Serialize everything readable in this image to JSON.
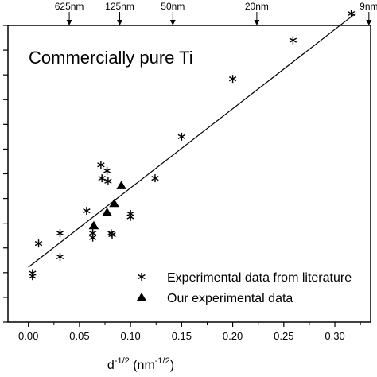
{
  "chart_data": {
    "type": "scatter",
    "title": "",
    "annotation": "Commercially pure Ti",
    "xlabel": "d",
    "xlabel_sup": "-1/2",
    "xlabel_unit_open": " (nm",
    "xlabel_unit_sup": "-1/2",
    "xlabel_unit_close": ")",
    "ylabel": "",
    "xlim": [
      -0.02,
      0.335
    ],
    "ylim": [
      0,
      1
    ],
    "x_ticks": [
      0.0,
      0.05,
      0.1,
      0.15,
      0.2,
      0.25,
      0.3
    ],
    "x_tick_labels": [
      "0.00",
      "0.05",
      "0.10",
      "0.15",
      "0.20",
      "0.25",
      "0.30"
    ],
    "y_minor_count": 12,
    "grid": false,
    "legend_position": "bottom-right",
    "top_axis": [
      {
        "label": "625nm",
        "x": 0.04
      },
      {
        "label": "125nm",
        "x": 0.0894
      },
      {
        "label": "50nm",
        "x": 0.1414
      },
      {
        "label": "20nm",
        "x": 0.2236
      },
      {
        "label": "9nm",
        "x": 0.3333
      }
    ],
    "series": [
      {
        "name": "Experimental data from literature",
        "marker": "asterisk",
        "points": [
          [
            0.004,
            0.155
          ],
          [
            0.004,
            0.165
          ],
          [
            0.01,
            0.265
          ],
          [
            0.031,
            0.22
          ],
          [
            0.031,
            0.3
          ],
          [
            0.057,
            0.375
          ],
          [
            0.063,
            0.285
          ],
          [
            0.063,
            0.3
          ],
          [
            0.071,
            0.53
          ],
          [
            0.072,
            0.485
          ],
          [
            0.077,
            0.51
          ],
          [
            0.078,
            0.475
          ],
          [
            0.081,
            0.3
          ],
          [
            0.082,
            0.295
          ],
          [
            0.1,
            0.365
          ],
          [
            0.1,
            0.355
          ],
          [
            0.124,
            0.485
          ],
          [
            0.15,
            0.625
          ],
          [
            0.2,
            0.82
          ],
          [
            0.259,
            0.95
          ],
          [
            0.316,
            1.04
          ]
        ]
      },
      {
        "name": "Our experimental data",
        "marker": "triangle",
        "points": [
          [
            0.064,
            0.325
          ],
          [
            0.077,
            0.37
          ],
          [
            0.084,
            0.4
          ],
          [
            0.091,
            0.46
          ]
        ]
      }
    ],
    "fit_line": {
      "x": [
        0.0,
        0.32
      ],
      "y": [
        0.185,
        1.04
      ]
    }
  }
}
